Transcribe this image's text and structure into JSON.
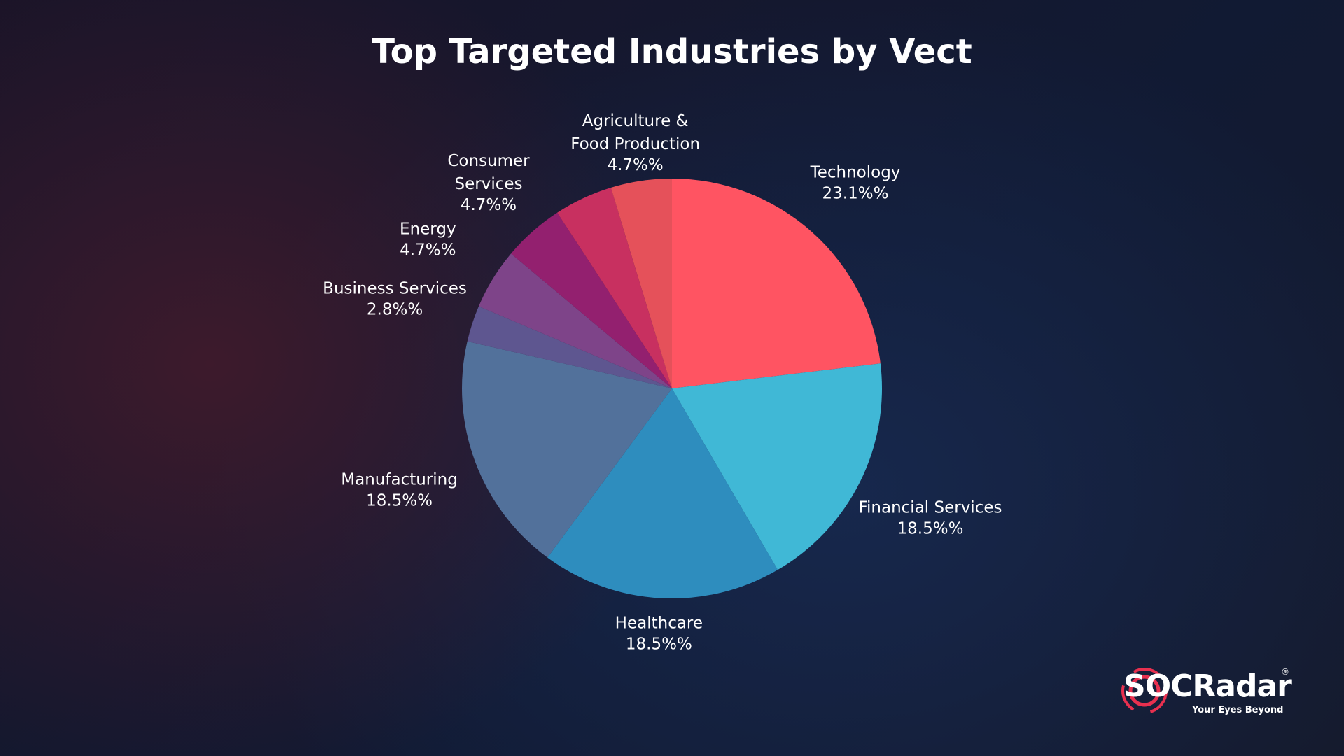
{
  "chart_data": {
    "type": "pie",
    "title": "Top Targeted Industries by Vect",
    "categories": [
      "Technology",
      "Financial Services",
      "Healthcare",
      "Manufacturing",
      "Business Services",
      "Energy",
      "Consumer\nServices",
      null,
      "Agriculture &\nFood Production"
    ],
    "values": [
      23.1,
      18.5,
      18.5,
      18.5,
      2.8,
      4.7,
      4.7,
      4.5,
      4.7
    ],
    "value_labels": [
      "23.1%%",
      "18.5%%",
      "18.5%%",
      "18.5%%",
      "2.8%%",
      "4.7%%",
      "4.7%%",
      null,
      "4.7%%"
    ],
    "colors": [
      "#ff5462",
      "#40b8d6",
      "#2e8dbe",
      "#52719b",
      "#5e5690",
      "#7e4489",
      "#93206f",
      "#c83060",
      "#e5515a"
    ]
  },
  "logo": {
    "name": "SOCRadar",
    "registered": "®",
    "tagline": "Your Eyes Beyond"
  }
}
